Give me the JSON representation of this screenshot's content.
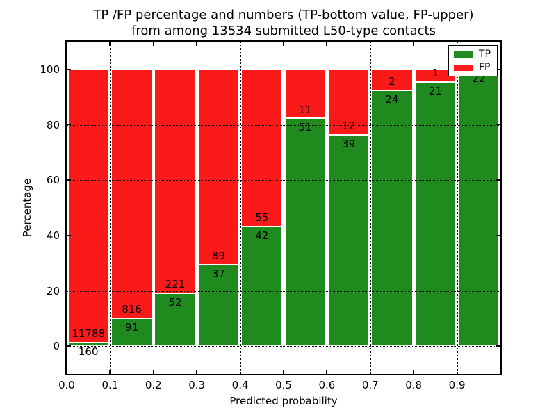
{
  "title": {
    "line1": "TP /FP percentage and numbers (TP-bottom value, FP-upper)",
    "line2": "from among 13534 submitted L50-type contacts"
  },
  "axes": {
    "xlabel": "Predicted probability",
    "ylabel": "Percentage",
    "x_tick_labels": [
      "0.0",
      "0.1",
      "0.2",
      "0.3",
      "0.4",
      "0.5",
      "0.6",
      "0.7",
      "0.8",
      "0.9"
    ],
    "x_tick_values": [
      0.0,
      0.1,
      0.2,
      0.3,
      0.4,
      0.5,
      0.6,
      0.7,
      0.8,
      0.9
    ],
    "y_tick_labels": [
      "0",
      "20",
      "40",
      "60",
      "80",
      "100"
    ],
    "y_tick_values": [
      0,
      20,
      40,
      60,
      80,
      100
    ],
    "xlim": [
      0.0,
      1.0
    ],
    "ylim": [
      -10,
      110
    ]
  },
  "legend": {
    "position": "upper right",
    "entries": [
      {
        "label": "TP",
        "color": "#1f8b1f"
      },
      {
        "label": "FP",
        "color": "#fa1a1a"
      }
    ]
  },
  "colors": {
    "tp": "#1f8b1f",
    "fp": "#fa1a1a",
    "grid": "#000000",
    "frame": "#000000",
    "background": "#ffffff"
  },
  "chart_data": {
    "type": "bar",
    "stacked": true,
    "normalized_to_percent": true,
    "total_submitted": 13534,
    "title": "TP /FP percentage and numbers (TP-bottom value, FP-upper) from among 13534 submitted L50-type contacts",
    "xlabel": "Predicted probability",
    "ylabel": "Percentage",
    "xlim": [
      0.0,
      1.0
    ],
    "ylim": [
      -10,
      110
    ],
    "grid": true,
    "bin_width": 0.1,
    "categories": [
      "0.0-0.1",
      "0.1-0.2",
      "0.2-0.3",
      "0.3-0.4",
      "0.4-0.5",
      "0.5-0.6",
      "0.6-0.7",
      "0.7-0.8",
      "0.8-0.9",
      "0.9-1.0"
    ],
    "series": [
      {
        "name": "TP",
        "color": "#1f8b1f",
        "counts": [
          160,
          91,
          52,
          37,
          42,
          51,
          39,
          24,
          21,
          22
        ],
        "pct": [
          1.34,
          10.03,
          19.05,
          29.37,
          43.3,
          82.26,
          76.47,
          92.31,
          95.45,
          100.0
        ]
      },
      {
        "name": "FP",
        "color": "#fa1a1a",
        "counts": [
          11788,
          816,
          221,
          89,
          55,
          11,
          12,
          2,
          1,
          0
        ],
        "pct": [
          98.66,
          89.97,
          80.95,
          70.63,
          56.7,
          17.74,
          23.53,
          7.69,
          4.55,
          0.0
        ]
      }
    ],
    "bar_label_rule": "FP count printed above TP/FP boundary, TP count printed below boundary",
    "fp_label_hidden_by_legend_in_last_bin": true
  }
}
